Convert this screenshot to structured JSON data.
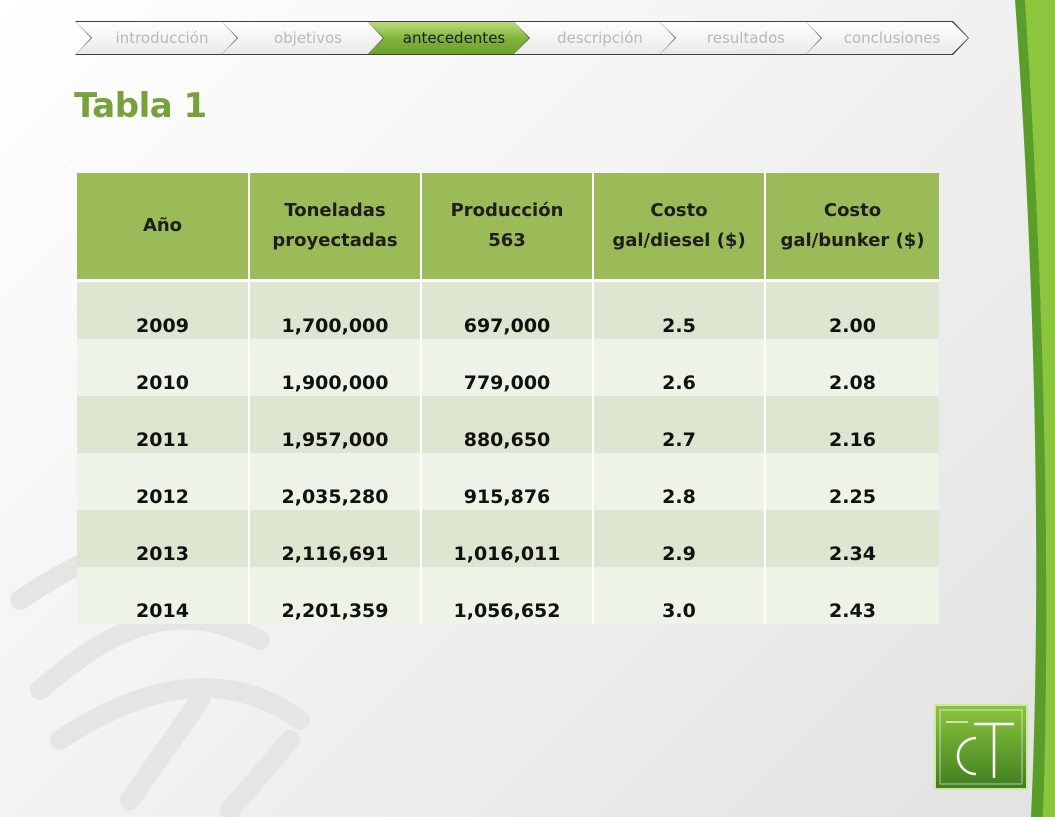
{
  "breadcrumb": {
    "items": [
      {
        "label": "introducción",
        "active": false
      },
      {
        "label": "objetivos",
        "active": false
      },
      {
        "label": "antecedentes",
        "active": true
      },
      {
        "label": "descripción",
        "active": false
      },
      {
        "label": "resultados",
        "active": false
      },
      {
        "label": "conclusiones",
        "active": false
      }
    ]
  },
  "title": "Tabla 1",
  "table": {
    "headers": [
      [
        "Año"
      ],
      [
        "Toneladas",
        "proyectadas"
      ],
      [
        "Producción",
        "563"
      ],
      [
        "Costo",
        "gal/diesel ($)"
      ],
      [
        "Costo",
        "gal/bunker ($)"
      ]
    ],
    "rows": [
      [
        "2009",
        "1,700,000",
        "697,000",
        "2.5",
        "2.00"
      ],
      [
        "2010",
        "1,900,000",
        "779,000",
        "2.6",
        "2.08"
      ],
      [
        "2011",
        "1,957,000",
        "880,650",
        "2.7",
        "2.16"
      ],
      [
        "2012",
        "2,035,280",
        "915,876",
        "2.8",
        "2.25"
      ],
      [
        "2013",
        "2,116,691",
        "1,016,011",
        "2.9",
        "2.34"
      ],
      [
        "2014",
        "2,201,359",
        "1,056,652",
        "3.0",
        "2.43"
      ]
    ]
  },
  "colors": {
    "accent": "#9bbb59",
    "title": "#76a13b",
    "row_odd": "#dde6d0",
    "row_even": "#eef3e8"
  },
  "logo": {
    "icon": "ct-congreso-tecnico-logo"
  }
}
